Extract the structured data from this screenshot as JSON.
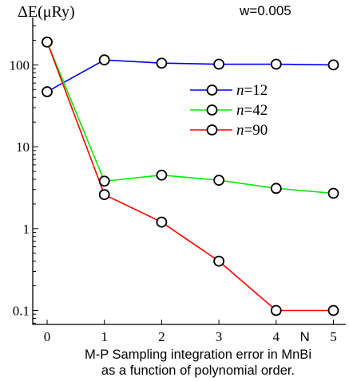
{
  "chart_data": {
    "type": "line",
    "title": "",
    "ylabel": "ΔE(μRy)",
    "xlabel": "",
    "y_scale": "log",
    "ylim": [
      0.07,
      300
    ],
    "xlim": [
      -0.25,
      5.25
    ],
    "x": [
      0,
      1,
      2,
      3,
      4,
      5
    ],
    "x_ticks": [
      "0",
      "1",
      "2",
      "3",
      "4",
      "5"
    ],
    "x_extra_label": "N",
    "y_ticks": [
      {
        "value": 0.1,
        "label": "0.1"
      },
      {
        "value": 1,
        "label": "1"
      },
      {
        "value": 10,
        "label": "10"
      },
      {
        "value": 100,
        "label": "100"
      }
    ],
    "annotation": "w=0.005",
    "legend_position": "upper-right",
    "series": [
      {
        "name": "n=12",
        "legend_italic": "n",
        "legend_rest": "=12",
        "color": "#0000ff",
        "values": [
          47,
          115,
          105,
          102,
          102,
          100
        ]
      },
      {
        "name": "n=42",
        "legend_italic": "n",
        "legend_rest": "=42",
        "color": "#00ee00",
        "values": [
          190,
          3.8,
          4.5,
          3.9,
          3.1,
          2.7
        ]
      },
      {
        "name": "n=90",
        "legend_italic": "n",
        "legend_rest": "=90",
        "color": "#ff0000",
        "values": [
          190,
          2.6,
          1.2,
          0.4,
          0.1,
          0.1
        ]
      }
    ],
    "caption_lines": [
      "M-P Sampling integration error in MnBi",
      "as a function of polynomial order."
    ]
  }
}
